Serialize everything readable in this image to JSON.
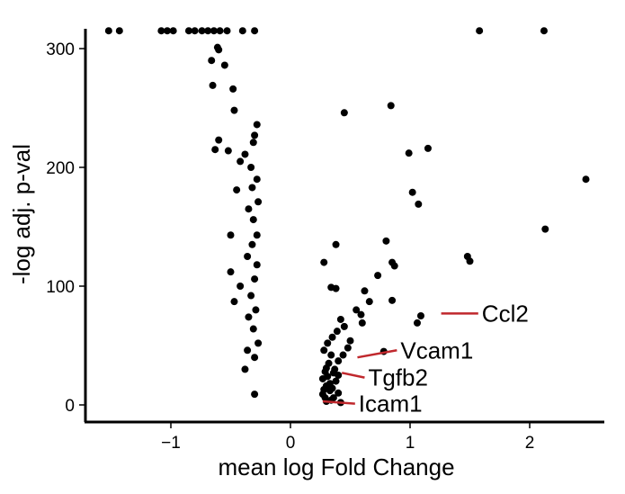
{
  "chart_data": {
    "type": "scatter",
    "title": "",
    "xlabel": "mean log Fold Change",
    "ylabel": "-log adj. p-val",
    "xlim": [
      -1.72,
      2.62
    ],
    "ylim": [
      -12,
      322
    ],
    "xticks": [
      -1,
      0,
      1,
      2
    ],
    "xtick_labels": [
      "−1",
      "0",
      "1",
      "2"
    ],
    "yticks": [
      0,
      100,
      200,
      300
    ],
    "ytick_labels": [
      "0",
      "100",
      "200",
      "300"
    ],
    "grid": false,
    "point_color": "#000000",
    "label_line_color": "#c0282d",
    "points": [
      [
        -1.52,
        315
      ],
      [
        -1.43,
        315
      ],
      [
        -1.08,
        315
      ],
      [
        -1.03,
        315
      ],
      [
        -0.98,
        315
      ],
      [
        -0.85,
        315
      ],
      [
        -0.8,
        315
      ],
      [
        -0.74,
        315
      ],
      [
        -0.69,
        315
      ],
      [
        -0.64,
        315
      ],
      [
        -0.59,
        315
      ],
      [
        -0.53,
        315
      ],
      [
        -0.4,
        315
      ],
      [
        -0.3,
        315
      ],
      [
        1.58,
        315
      ],
      [
        2.12,
        315
      ],
      [
        -0.61,
        301
      ],
      [
        -0.6,
        299
      ],
      [
        -0.66,
        290
      ],
      [
        -0.55,
        286
      ],
      [
        -0.65,
        269
      ],
      [
        -0.48,
        266
      ],
      [
        -0.47,
        248
      ],
      [
        -0.3,
        227
      ],
      [
        -0.31,
        221
      ],
      [
        -0.6,
        223
      ],
      [
        -0.63,
        215
      ],
      [
        -0.52,
        214
      ],
      [
        -0.38,
        211
      ],
      [
        -0.28,
        236
      ],
      [
        -0.42,
        205
      ],
      [
        -0.33,
        200
      ],
      [
        -0.28,
        190
      ],
      [
        -0.32,
        183
      ],
      [
        -0.45,
        181
      ],
      [
        -0.27,
        171
      ],
      [
        -0.35,
        165
      ],
      [
        -0.31,
        156
      ],
      [
        -0.28,
        143
      ],
      [
        -0.5,
        143
      ],
      [
        -0.32,
        135
      ],
      [
        -0.36,
        125
      ],
      [
        -0.28,
        118
      ],
      [
        -0.5,
        112
      ],
      [
        -0.3,
        106
      ],
      [
        -0.42,
        100
      ],
      [
        -0.33,
        92
      ],
      [
        -0.47,
        87
      ],
      [
        -0.29,
        80
      ],
      [
        -0.35,
        74
      ],
      [
        -0.31,
        64
      ],
      [
        -0.27,
        52
      ],
      [
        -0.36,
        46
      ],
      [
        -0.3,
        40
      ],
      [
        -0.38,
        30
      ],
      [
        -0.3,
        9
      ],
      [
        0.45,
        246
      ],
      [
        0.84,
        252
      ],
      [
        0.99,
        212
      ],
      [
        1.15,
        216
      ],
      [
        1.02,
        179
      ],
      [
        1.07,
        169
      ],
      [
        2.47,
        190
      ],
      [
        2.13,
        148
      ],
      [
        1.48,
        125
      ],
      [
        1.5,
        121
      ],
      [
        0.38,
        135
      ],
      [
        0.28,
        120
      ],
      [
        0.34,
        99
      ],
      [
        0.38,
        98
      ],
      [
        0.8,
        138
      ],
      [
        0.85,
        120
      ],
      [
        0.87,
        117
      ],
      [
        0.73,
        109
      ],
      [
        0.62,
        96
      ],
      [
        0.66,
        87
      ],
      [
        0.85,
        88
      ],
      [
        1.09,
        75
      ],
      [
        1.06,
        69
      ],
      [
        0.55,
        80
      ],
      [
        0.59,
        76
      ],
      [
        0.6,
        69
      ],
      [
        0.42,
        72
      ],
      [
        0.45,
        66
      ],
      [
        0.39,
        62
      ],
      [
        0.35,
        57
      ],
      [
        0.31,
        52
      ],
      [
        0.28,
        46
      ],
      [
        0.34,
        42
      ],
      [
        0.44,
        42
      ],
      [
        0.4,
        37
      ],
      [
        0.3,
        31
      ],
      [
        0.36,
        27
      ],
      [
        0.27,
        22
      ],
      [
        0.33,
        18
      ],
      [
        0.28,
        13
      ],
      [
        0.4,
        10
      ],
      [
        0.36,
        6
      ],
      [
        0.3,
        3
      ],
      [
        0.42,
        2
      ],
      [
        0.5,
        54
      ],
      [
        0.48,
        48
      ],
      [
        0.78,
        45
      ],
      [
        0.32,
        35
      ],
      [
        0.29,
        28
      ],
      [
        0.27,
        9
      ],
      [
        0.3,
        16
      ],
      [
        0.33,
        12
      ],
      [
        0.38,
        20
      ],
      [
        0.31,
        24
      ],
      [
        0.35,
        14
      ],
      [
        0.29,
        6
      ],
      [
        0.34,
        4
      ],
      [
        0.4,
        25
      ],
      [
        0.37,
        30
      ]
    ],
    "labels": [
      {
        "text": "Ccl2",
        "point": [
          1.26,
          77
        ],
        "text_x": 1.6,
        "text_y": 77
      },
      {
        "text": "Vcam1",
        "point": [
          0.56,
          40
        ],
        "text_x": 0.92,
        "text_y": 46
      },
      {
        "text": "Tgfb2",
        "point": [
          0.43,
          27
        ],
        "text_x": 0.65,
        "text_y": 23
      },
      {
        "text": "Icam1",
        "point": [
          0.27,
          3
        ],
        "text_x": 0.57,
        "text_y": 1
      }
    ]
  }
}
